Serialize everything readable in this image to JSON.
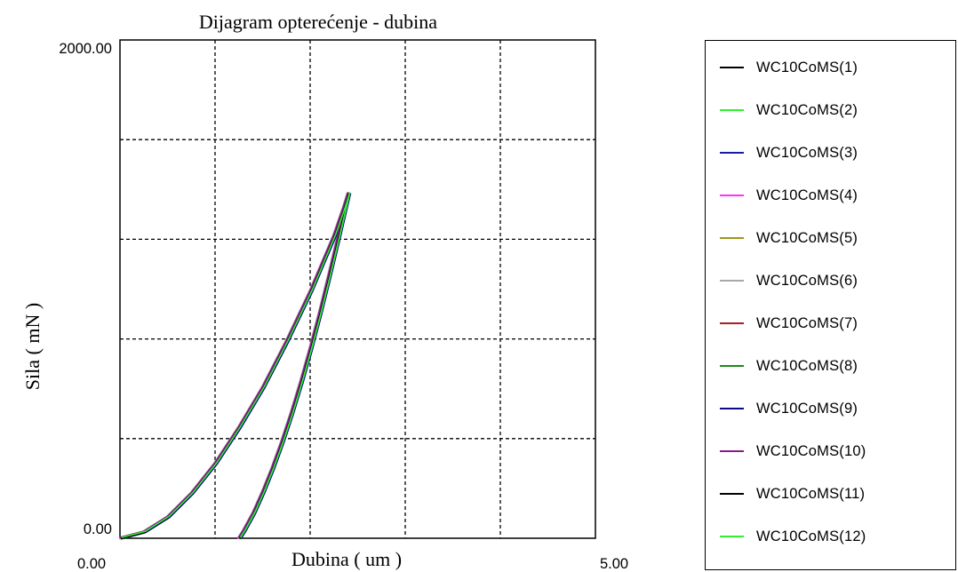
{
  "chart_data": {
    "type": "line",
    "title": "Dijagram opterećenje - dubina",
    "xlabel": "Dubina ( um )",
    "ylabel": "Sila ( mN )",
    "xlim": [
      0,
      5
    ],
    "ylim": [
      0,
      2000
    ],
    "x_tick_labels": [
      "0.00",
      "5.00"
    ],
    "y_tick_labels": [
      "0.00",
      "2000.00"
    ],
    "grid": true,
    "legend_position": "right",
    "loading_curve": {
      "x": [
        0.0,
        0.25,
        0.5,
        0.75,
        1.0,
        1.25,
        1.5,
        1.75,
        2.0,
        2.25,
        2.35,
        2.4
      ],
      "y": [
        0,
        25,
        85,
        180,
        300,
        445,
        605,
        790,
        990,
        1215,
        1325,
        1385
      ]
    },
    "unloading_curve": {
      "x": [
        2.4,
        2.3,
        2.2,
        2.1,
        2.0,
        1.9,
        1.8,
        1.7,
        1.6,
        1.5,
        1.4,
        1.3,
        1.25
      ],
      "y": [
        1385,
        1220,
        1060,
        905,
        760,
        625,
        500,
        385,
        280,
        185,
        100,
        30,
        0
      ]
    },
    "series": [
      {
        "name": "WC10CoMS(1)",
        "color": "#000000"
      },
      {
        "name": "WC10CoMS(2)",
        "color": "#33ee33"
      },
      {
        "name": "WC10CoMS(3)",
        "color": "#1a1aa8"
      },
      {
        "name": "WC10CoMS(4)",
        "color": "#ff33ff"
      },
      {
        "name": "WC10CoMS(5)",
        "color": "#9a9a1a"
      },
      {
        "name": "WC10CoMS(6)",
        "color": "#a8a8a8"
      },
      {
        "name": "WC10CoMS(7)",
        "color": "#a82020"
      },
      {
        "name": "WC10CoMS(8)",
        "color": "#1a8a1a"
      },
      {
        "name": "WC10CoMS(9)",
        "color": "#0a0a88"
      },
      {
        "name": "WC10CoMS(10)",
        "color": "#8a1a8a"
      },
      {
        "name": "WC10CoMS(11)",
        "color": "#000000"
      },
      {
        "name": "WC10CoMS(12)",
        "color": "#33ee33"
      }
    ]
  }
}
